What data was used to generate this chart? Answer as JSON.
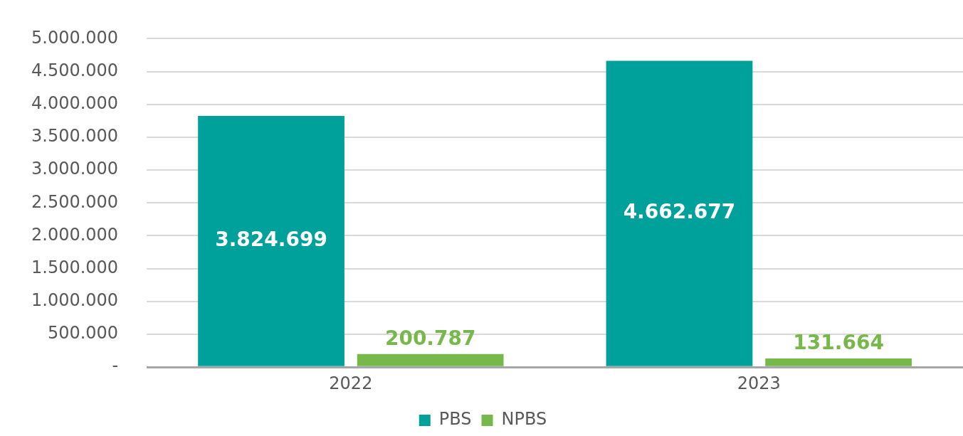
{
  "chart_data": {
    "type": "bar",
    "categories": [
      "2022",
      "2023"
    ],
    "series": [
      {
        "name": "PBS",
        "color": "#00a19a",
        "values": [
          3824699,
          4662677
        ],
        "value_labels": [
          "3.824.699",
          "4.662.677"
        ]
      },
      {
        "name": "NPBS",
        "color": "#76b94a",
        "values": [
          200787,
          131664
        ],
        "value_labels": [
          "200.787",
          "131.664"
        ]
      }
    ],
    "ylim": [
      0,
      5000000
    ],
    "yticks": [
      {
        "value": 0,
        "label": "-"
      },
      {
        "value": 500000,
        "label": "500.000"
      },
      {
        "value": 1000000,
        "label": "1.000.000"
      },
      {
        "value": 1500000,
        "label": "1.500.000"
      },
      {
        "value": 2000000,
        "label": "2.000.000"
      },
      {
        "value": 2500000,
        "label": "2.500.000"
      },
      {
        "value": 3000000,
        "label": "3.000.000"
      },
      {
        "value": 3500000,
        "label": "3.500.000"
      },
      {
        "value": 4000000,
        "label": "4.000.000"
      },
      {
        "value": 4500000,
        "label": "4.500.000"
      },
      {
        "value": 5000000,
        "label": "5.000.000"
      }
    ],
    "grid": "y",
    "legend": "bottom"
  }
}
